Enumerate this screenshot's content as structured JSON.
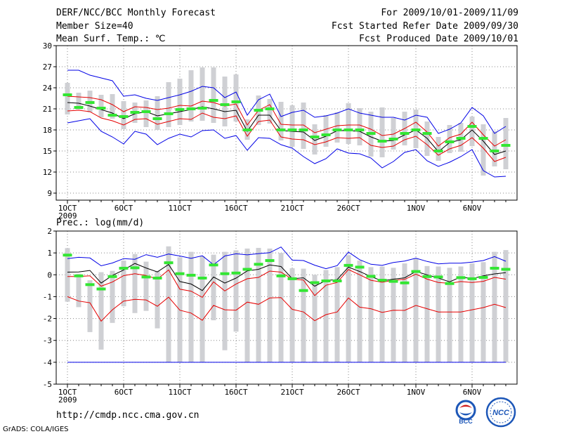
{
  "header": {
    "title": "DERF/NCC/BCC Monthly Forecast",
    "member_size": "Member Size=40",
    "variable": "Mean Surf. Temp.: ℃",
    "period": "For 2009/10/01-2009/11/09",
    "started": "Fcst Started Refer Date 2009/09/30",
    "produced": "Fcst Produced Date 2009/10/01"
  },
  "footer": {
    "url": "http://cmdp.ncc.cma.gov.cn",
    "credit": "GrADS: COLA/IGES",
    "logo_bcc": "BCC",
    "logo_ncc": "NCC"
  },
  "colors": {
    "box": "#cfd0d4",
    "median": "#33e633",
    "mean": "#000000",
    "spread": "#e60000",
    "extreme": "#0000e6",
    "grid": "#888888"
  },
  "chart_data": [
    {
      "type": "line",
      "title": "Mean Surf. Temp.: ℃",
      "x_tick_labels": [
        "1OCT",
        "6OCT",
        "11OCT",
        "16OCT",
        "21OCT",
        "26OCT",
        "1NOV",
        "6NOV"
      ],
      "x_tick_days": [
        1,
        6,
        11,
        16,
        21,
        26,
        32,
        37
      ],
      "x_year_label": "2009",
      "xlim": [
        0,
        41
      ],
      "ylim": [
        8,
        30
      ],
      "y_ticks": [
        9,
        12,
        15,
        18,
        21,
        24,
        27,
        30
      ],
      "days": [
        1,
        2,
        3,
        4,
        5,
        6,
        7,
        8,
        9,
        10,
        11,
        12,
        13,
        14,
        15,
        16,
        17,
        18,
        19,
        20,
        21,
        22,
        23,
        24,
        25,
        26,
        27,
        28,
        29,
        30,
        31,
        32,
        33,
        34,
        35,
        36,
        37,
        38,
        39,
        40
      ],
      "series": [
        {
          "name": "max",
          "values": [
            26.5,
            26.5,
            25.8,
            25.4,
            25.0,
            22.8,
            23.0,
            22.5,
            22.2,
            22.6,
            23.0,
            23.5,
            24.2,
            24.0,
            22.6,
            23.4,
            20.1,
            22.3,
            23.1,
            19.9,
            20.5,
            20.8,
            19.8,
            20.0,
            20.4,
            21.0,
            20.4,
            20.1,
            19.8,
            19.8,
            19.4,
            20.1,
            19.8,
            17.5,
            18.1,
            19.0,
            21.2,
            20.0,
            17.5,
            18.5
          ]
        },
        {
          "name": "upper",
          "values": [
            22.8,
            22.7,
            22.6,
            22.3,
            21.6,
            20.6,
            21.3,
            21.2,
            20.9,
            21.1,
            21.5,
            21.4,
            22.1,
            21.9,
            21.4,
            21.7,
            18.7,
            20.8,
            21.6,
            18.8,
            18.7,
            18.7,
            17.6,
            18.1,
            18.6,
            18.7,
            18.7,
            18.1,
            17.2,
            17.4,
            18.2,
            19.1,
            17.7,
            15.7,
            16.9,
            17.4,
            19.1,
            17.3,
            15.7,
            16.6
          ]
        },
        {
          "name": "mean",
          "values": [
            21.9,
            21.8,
            21.4,
            20.9,
            20.4,
            19.6,
            20.3,
            20.6,
            20.0,
            20.3,
            20.6,
            20.9,
            21.3,
            21.0,
            20.6,
            20.8,
            17.8,
            20.1,
            20.1,
            17.9,
            17.8,
            17.7,
            16.5,
            17.1,
            17.9,
            17.9,
            17.8,
            17.0,
            16.4,
            16.5,
            17.3,
            18.0,
            16.8,
            14.9,
            16.2,
            16.6,
            18.0,
            16.4,
            14.5,
            15.0
          ]
        },
        {
          "name": "lower",
          "values": [
            20.7,
            20.8,
            20.6,
            19.7,
            19.3,
            18.7,
            19.5,
            19.6,
            18.8,
            19.2,
            19.6,
            19.5,
            20.4,
            19.8,
            19.6,
            20.0,
            17.1,
            19.2,
            19.4,
            17.0,
            16.7,
            16.6,
            15.9,
            16.3,
            16.9,
            16.8,
            16.9,
            15.8,
            15.5,
            15.7,
            16.6,
            17.1,
            15.9,
            14.4,
            15.3,
            15.8,
            16.9,
            15.4,
            13.5,
            14.1
          ]
        },
        {
          "name": "min",
          "values": [
            19.0,
            19.3,
            19.6,
            17.8,
            17.0,
            16.0,
            17.8,
            17.4,
            15.9,
            16.8,
            17.4,
            17.0,
            17.9,
            18.0,
            16.8,
            17.2,
            15.1,
            16.9,
            16.8,
            15.9,
            15.4,
            14.2,
            13.2,
            13.9,
            15.3,
            14.7,
            14.6,
            14.0,
            12.6,
            13.5,
            14.8,
            15.2,
            13.6,
            12.8,
            13.4,
            14.2,
            15.2,
            12.2,
            11.3,
            11.4
          ]
        },
        {
          "name": "median",
          "values": [
            23.0,
            21.2,
            21.9,
            21.1,
            20.1,
            19.9,
            20.5,
            20.6,
            19.6,
            20.3,
            20.9,
            21.0,
            21.1,
            22.2,
            21.6,
            22.0,
            18.0,
            20.8,
            21.0,
            18.0,
            18.0,
            18.0,
            17.0,
            17.3,
            18.0,
            18.0,
            18.0,
            17.5,
            16.4,
            16.7,
            17.5,
            18.0,
            17.5,
            15.0,
            16.3,
            16.8,
            18.5,
            16.8,
            15.0,
            15.8
          ]
        },
        {
          "name": "box_top",
          "values": [
            24.7,
            23.3,
            23.6,
            23.0,
            23.1,
            22.1,
            21.9,
            22.2,
            22.8,
            24.8,
            25.3,
            26.5,
            26.9,
            26.9,
            25.6,
            25.9,
            19.5,
            22.9,
            22.4,
            22.0,
            21.5,
            21.9,
            18.8,
            20.1,
            20.5,
            21.8,
            21.1,
            20.6,
            21.2,
            19.7,
            20.6,
            20.9,
            19.2,
            17.0,
            18.7,
            19.0,
            19.9,
            18.8,
            17.8,
            19.7
          ]
        },
        {
          "name": "box_bottom",
          "values": [
            20.2,
            20.9,
            20.5,
            19.8,
            19.6,
            18.1,
            19.0,
            18.4,
            18.0,
            18.4,
            18.7,
            19.2,
            19.3,
            19.0,
            18.5,
            19.2,
            16.6,
            18.7,
            18.9,
            16.5,
            15.6,
            15.3,
            14.5,
            15.6,
            16.2,
            16.0,
            15.8,
            14.2,
            14.1,
            15.2,
            15.8,
            15.4,
            14.3,
            13.6,
            14.7,
            14.9,
            15.7,
            11.5,
            12.8,
            12.4
          ]
        }
      ]
    },
    {
      "type": "line",
      "title": "Prec.: log(mm/d)",
      "x_tick_labels": [
        "1OCT",
        "6OCT",
        "11OCT",
        "16OCT",
        "21OCT",
        "26OCT",
        "1NOV",
        "6NOV"
      ],
      "x_tick_days": [
        1,
        6,
        11,
        16,
        21,
        26,
        32,
        37
      ],
      "x_year_label": "2009",
      "xlim": [
        0,
        41
      ],
      "ylim": [
        -5,
        2
      ],
      "y_ticks": [
        -5,
        -4,
        -3,
        -2,
        -1,
        0,
        1,
        2
      ],
      "days": [
        1,
        2,
        3,
        4,
        5,
        6,
        7,
        8,
        9,
        10,
        11,
        12,
        13,
        14,
        15,
        16,
        17,
        18,
        19,
        20,
        21,
        22,
        23,
        24,
        25,
        26,
        27,
        28,
        29,
        30,
        31,
        32,
        33,
        34,
        35,
        36,
        37,
        38,
        39,
        40
      ],
      "series": [
        {
          "name": "max",
          "values": [
            0.74,
            0.8,
            0.77,
            0.41,
            0.54,
            0.74,
            0.71,
            0.92,
            0.8,
            0.95,
            0.86,
            0.75,
            0.87,
            0.46,
            0.86,
            0.96,
            0.91,
            0.97,
            1.01,
            1.27,
            0.67,
            0.65,
            0.44,
            0.28,
            0.42,
            1.04,
            0.69,
            0.48,
            0.43,
            0.56,
            0.63,
            0.76,
            0.61,
            0.5,
            0.53,
            0.53,
            0.58,
            0.65,
            0.83,
            0.62
          ]
        },
        {
          "name": "mean",
          "values": [
            0.12,
            0.13,
            0.2,
            -0.38,
            -0.03,
            0.22,
            0.52,
            0.31,
            0.13,
            0.47,
            -0.31,
            -0.42,
            -0.72,
            -0.1,
            -0.38,
            -0.15,
            0.18,
            0.25,
            0.45,
            0.38,
            -0.18,
            -0.14,
            -0.52,
            -0.26,
            -0.22,
            0.35,
            0.15,
            -0.08,
            -0.28,
            -0.2,
            -0.14,
            0.15,
            0.0,
            -0.15,
            -0.32,
            -0.1,
            -0.18,
            -0.05,
            0.04,
            0.1
          ]
        },
        {
          "name": "upper",
          "values": [
            -0.08,
            -0.08,
            -0.05,
            -0.52,
            -0.33,
            -0.04,
            0.05,
            -0.03,
            -0.2,
            0.22,
            -0.66,
            -0.75,
            -1.03,
            -0.32,
            -0.74,
            -0.42,
            -0.18,
            -0.12,
            0.17,
            0.12,
            -0.2,
            -0.24,
            -0.95,
            -0.48,
            -0.35,
            0.24,
            0.0,
            -0.25,
            -0.34,
            -0.25,
            -0.21,
            0.03,
            -0.2,
            -0.35,
            -0.39,
            -0.31,
            -0.35,
            -0.3,
            -0.12,
            -0.2
          ]
        },
        {
          "name": "lower",
          "values": [
            -1.0,
            -1.2,
            -1.28,
            -2.12,
            -1.6,
            -1.2,
            -1.12,
            -1.15,
            -1.44,
            -1.02,
            -1.62,
            -1.75,
            -2.08,
            -1.4,
            -1.6,
            -1.62,
            -1.25,
            -1.35,
            -1.06,
            -1.04,
            -1.58,
            -1.7,
            -2.1,
            -1.82,
            -1.7,
            -1.06,
            -1.48,
            -1.55,
            -1.72,
            -1.62,
            -1.63,
            -1.4,
            -1.55,
            -1.7,
            -1.7,
            -1.7,
            -1.6,
            -1.5,
            -1.35,
            -1.5
          ]
        },
        {
          "name": "min",
          "values": [
            -4,
            -4,
            -4,
            -4,
            -4,
            -4,
            -4,
            -4,
            -4,
            -4,
            -4,
            -4,
            -4,
            -4,
            -4,
            -4,
            -4,
            -4,
            -4,
            -4,
            -4,
            -4,
            -4,
            -4,
            -4,
            -4,
            -4,
            -4,
            -4,
            -4,
            -4,
            -4,
            -4,
            -4,
            -4,
            -4,
            -4,
            -4,
            -4,
            -4
          ]
        },
        {
          "name": "median",
          "values": [
            0.9,
            -0.05,
            -0.45,
            -0.65,
            -0.08,
            0.3,
            0.32,
            -0.1,
            -0.15,
            0.55,
            0.05,
            -0.02,
            -0.15,
            0.45,
            0.05,
            0.08,
            0.25,
            0.48,
            0.65,
            -0.05,
            -0.18,
            -0.72,
            -0.36,
            -0.28,
            -0.28,
            0.43,
            0.35,
            -0.07,
            -0.25,
            -0.3,
            -0.37,
            0.15,
            -0.08,
            -0.1,
            -0.4,
            -0.13,
            -0.18,
            -0.12,
            0.3,
            0.25
          ]
        },
        {
          "name": "box_top",
          "values": [
            1.22,
            0.05,
            -0.25,
            0.12,
            0.18,
            0.65,
            0.95,
            0.6,
            0.18,
            1.3,
            0.8,
            1.05,
            0.85,
            0.92,
            1.05,
            1.12,
            1.2,
            1.23,
            1.2,
            1.0,
            0.3,
            0.28,
            0.0,
            0.22,
            0.35,
            0.9,
            0.65,
            0.35,
            0.38,
            0.32,
            0.52,
            0.75,
            0.4,
            0.38,
            0.32,
            0.38,
            0.52,
            0.58,
            1.05,
            1.13
          ]
        },
        {
          "name": "box_bottom",
          "values": [
            -1.23,
            -1.48,
            -2.62,
            -3.42,
            -2.2,
            -1.44,
            -1.75,
            -1.65,
            -2.45,
            -4.0,
            -4.0,
            -4.0,
            -4.0,
            -2.08,
            -3.45,
            -2.6,
            -4.0,
            -4.0,
            -4.0,
            -4.0,
            -4.0,
            -4.0,
            -4.0,
            -4.0,
            -4.0,
            -4.0,
            -4.0,
            -4.0,
            -4.0,
            -4.0,
            -4.0,
            -4.0,
            -4.0,
            -4.0,
            -4.0,
            -4.0,
            -4.0,
            -4.0,
            -4.0,
            -4.0
          ]
        }
      ]
    }
  ]
}
